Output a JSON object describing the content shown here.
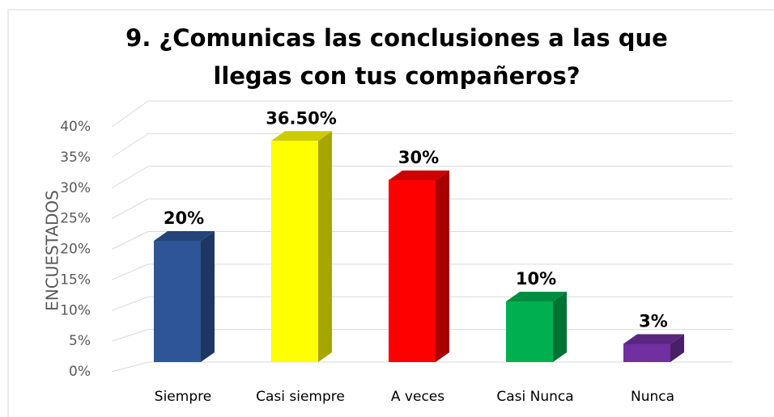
{
  "chart_data": {
    "type": "bar3d",
    "title": "9. ¿Comunicas las conclusiones a las que llegas con tus compañeros?",
    "y_label": "ENCUESTADOS",
    "categories": [
      "Siempre",
      "Casi siempre",
      "A veces",
      "Casi Nunca",
      "Nunca"
    ],
    "values": [
      20,
      36.5,
      30,
      10,
      3
    ],
    "value_labels": [
      "20%",
      "36.50%",
      "30%",
      "10%",
      "3%"
    ],
    "colors": [
      "#2e5597",
      "#ffff00",
      "#ff0000",
      "#00b050",
      "#7030a0"
    ],
    "ylim": [
      0,
      40
    ],
    "yticks": [
      {
        "value": 0,
        "label": "0%"
      },
      {
        "value": 5,
        "label": "5%"
      },
      {
        "value": 10,
        "label": "10%"
      },
      {
        "value": 15,
        "label": "15%"
      },
      {
        "value": 20,
        "label": "20%"
      },
      {
        "value": 25,
        "label": "25%"
      },
      {
        "value": 30,
        "label": "30%"
      },
      {
        "value": 35,
        "label": "35%"
      },
      {
        "value": 40,
        "label": "40%"
      }
    ],
    "grid": true
  }
}
